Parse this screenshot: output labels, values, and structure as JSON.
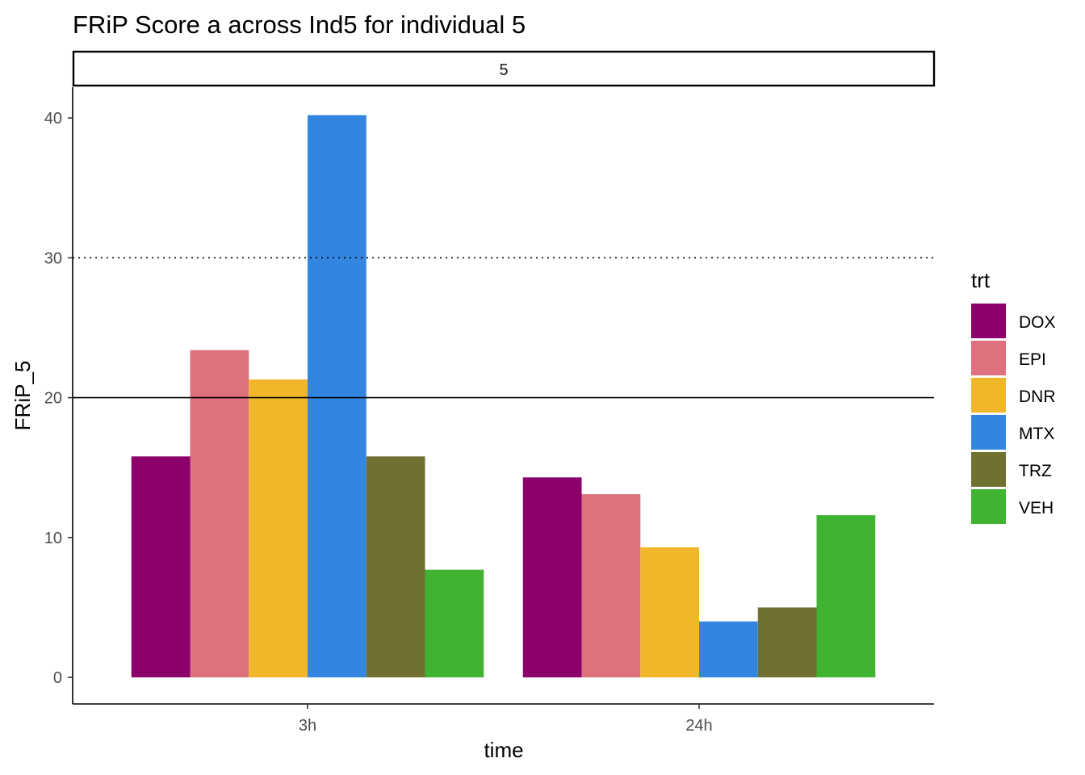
{
  "chart_data": {
    "type": "bar",
    "title": "FRiP Score a across Ind5 for individual 5",
    "facet_label": "5",
    "xlabel": "time",
    "ylabel": "FRiP_5",
    "categories": [
      "3h",
      "24h"
    ],
    "ylim": [
      -1.9,
      42.2
    ],
    "yticks": [
      0,
      10,
      20,
      30,
      40
    ],
    "grid": false,
    "legend": {
      "title": "trt",
      "position": "right"
    },
    "series": [
      {
        "name": "DOX",
        "color": "#8B006B",
        "values": [
          15.8,
          14.3
        ]
      },
      {
        "name": "EPI",
        "color": "#DF707E",
        "values": [
          23.4,
          13.1
        ]
      },
      {
        "name": "DNR",
        "color": "#F1B72B",
        "values": [
          21.3,
          9.3
        ]
      },
      {
        "name": "MTX",
        "color": "#3386E0",
        "values": [
          40.2,
          4.0
        ]
      },
      {
        "name": "TRZ",
        "color": "#707031",
        "values": [
          15.8,
          5.0
        ]
      },
      {
        "name": "VEH",
        "color": "#41B333",
        "values": [
          7.7,
          11.6
        ]
      }
    ],
    "reference_lines": [
      {
        "y": 20,
        "style": "solid"
      },
      {
        "y": 30,
        "style": "dotted"
      }
    ]
  }
}
